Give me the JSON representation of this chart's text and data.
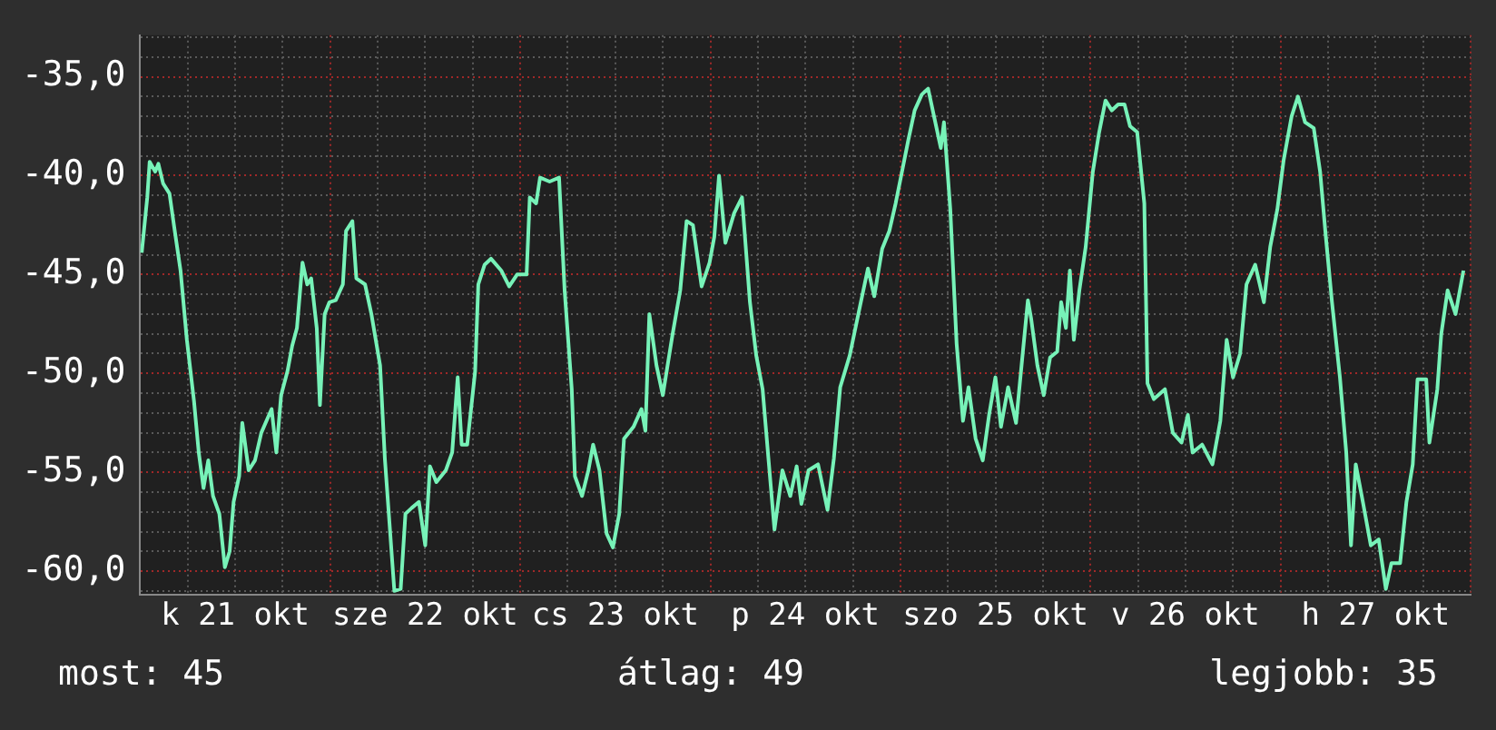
{
  "chart_data": {
    "type": "line",
    "x": [
      "--10-21T00:12",
      "--10-21T00:54",
      "--10-21T01:12",
      "--10-21T01:54",
      "--10-21T02:18",
      "--10-21T02:54",
      "--10-21T03:42",
      "--10-21T04:18",
      "--10-21T05:06",
      "--10-21T05:54",
      "--10-21T06:48",
      "--10-21T07:24",
      "--10-21T08:00",
      "--10-21T08:36",
      "--10-21T09:12",
      "--10-21T10:00",
      "--10-21T10:42",
      "--10-21T11:18",
      "--10-21T11:48",
      "--10-21T12:30",
      "--10-21T12:54",
      "--10-21T13:42",
      "--10-21T14:30",
      "--10-21T15:18",
      "--10-21T16:36",
      "--10-21T17:12",
      "--10-21T17:48",
      "--10-21T18:36",
      "--10-21T19:12",
      "--10-21T19:48",
      "--10-21T20:30",
      "--10-21T21:06",
      "--10-21T21:36",
      "--10-21T22:18",
      "--10-21T22:42",
      "--10-21T23:18",
      "--10-21T23:54",
      "--10-22T00:42",
      "--10-22T01:36",
      "--10-22T02:00",
      "--10-22T02:48",
      "--10-22T03:18",
      "--10-22T04:24",
      "--10-22T05:12",
      "--10-22T06:18",
      "--10-22T06:54",
      "--10-22T07:24",
      "--10-22T08:06",
      "--10-22T08:54",
      "--10-22T09:30",
      "--10-22T10:18",
      "--10-22T11:12",
      "--10-22T12:00",
      "--10-22T12:36",
      "--10-22T13:24",
      "--10-22T14:36",
      "--10-22T15:24",
      "--10-22T16:06",
      "--10-22T16:36",
      "--10-22T17:18",
      "--10-22T18:18",
      "--10-22T18:42",
      "--10-22T19:30",
      "--10-22T20:18",
      "--10-22T21:36",
      "--10-22T22:36",
      "--10-22T23:36",
      "--10-23T00:48",
      "--10-23T01:12",
      "--10-23T02:00",
      "--10-23T02:30",
      "--10-23T03:42",
      "--10-23T04:54",
      "--10-23T05:36",
      "--10-23T06:30",
      "--10-23T06:54",
      "--10-23T07:48",
      "--10-23T08:36",
      "--10-23T09:12",
      "--10-23T10:00",
      "--10-23T10:54",
      "--10-23T11:42",
      "--10-23T12:30",
      "--10-23T13:06",
      "--10-23T14:18",
      "--10-23T15:18",
      "--10-23T15:48",
      "--10-23T16:18",
      "--10-23T17:12",
      "--10-23T18:00",
      "--10-23T19:12",
      "--10-23T20:12",
      "--10-23T21:00",
      "--10-23T21:48",
      "--10-23T22:54",
      "--10-23T23:54",
      "--10-24T00:30",
      "--10-24T01:06",
      "--10-24T01:54",
      "--10-24T03:00",
      "--10-24T04:00",
      "--10-24T05:00",
      "--10-24T05:48",
      "--10-24T06:36",
      "--10-24T07:24",
      "--10-24T08:06",
      "--10-24T09:06",
      "--10-24T10:06",
      "--10-24T10:54",
      "--10-24T11:30",
      "--10-24T12:24",
      "--10-24T13:36",
      "--10-24T14:48",
      "--10-24T15:36",
      "--10-24T16:24",
      "--10-24T17:36",
      "--10-24T18:54",
      "--10-24T19:54",
      "--10-24T20:42",
      "--10-24T21:42",
      "--10-24T22:36",
      "--10-24T23:24",
      "--10-25T00:12",
      "--10-25T01:00",
      "--10-25T01:48",
      "--10-25T02:42",
      "--10-25T03:30",
      "--10-25T04:18",
      "--10-25T05:06",
      "--10-25T05:30",
      "--10-25T06:18",
      "--10-25T07:06",
      "--10-25T07:54",
      "--10-25T08:36",
      "--10-25T09:30",
      "--10-25T10:24",
      "--10-25T11:12",
      "--10-25T12:00",
      "--10-25T12:42",
      "--10-25T13:36",
      "--10-25T14:36",
      "--10-25T15:18",
      "--10-25T16:06",
      "--10-25T16:30",
      "--10-25T17:18",
      "--10-25T18:06",
      "--10-25T18:54",
      "--10-25T19:48",
      "--10-25T20:18",
      "--10-25T20:54",
      "--10-25T21:24",
      "--10-25T21:54",
      "--10-25T22:36",
      "--10-25T23:24",
      "--10-26T00:18",
      "--10-26T01:06",
      "--10-26T01:54",
      "--10-26T02:42",
      "--10-26T03:30",
      "--10-26T04:18",
      "--10-26T05:00",
      "--10-26T05:54",
      "--10-26T06:48",
      "--10-26T07:12",
      "--10-26T08:00",
      "--10-26T09:24",
      "--10-26T10:24",
      "--10-26T11:30",
      "--10-26T12:18",
      "--10-26T12:54",
      "--10-26T14:06",
      "--10-26T15:24",
      "--10-26T16:24",
      "--10-26T17:12",
      "--10-26T18:00",
      "--10-26T18:54",
      "--10-26T19:42",
      "--10-26T20:48",
      "--10-26T21:54",
      "--10-26T22:42",
      "--10-26T23:36",
      "--10-27T00:24",
      "--10-27T01:24",
      "--10-27T02:12",
      "--10-27T03:06",
      "--10-27T04:12",
      "--10-27T05:00",
      "--10-27T05:42",
      "--10-27T06:30",
      "--10-27T07:30",
      "--10-27T08:18",
      "--10-27T08:54",
      "--10-27T09:30",
      "--10-27T10:24",
      "--10-27T11:24",
      "--10-27T12:24",
      "--10-27T13:18",
      "--10-27T14:00",
      "--10-27T15:06",
      "--10-27T15:54",
      "--10-27T16:42",
      "--10-27T17:18",
      "--10-27T18:24",
      "--10-27T18:48",
      "--10-27T19:48",
      "--10-27T20:18",
      "--10-27T21:06",
      "--10-27T22:06",
      "--10-27T23:06"
    ],
    "series": [
      {
        "color": "#77f2b8",
        "values": [
          -43.9,
          -41.1,
          -39.3,
          -39.8,
          -39.4,
          -40.4,
          -40.9,
          -42.6,
          -44.8,
          -48.3,
          -51.4,
          -54.0,
          -55.8,
          -54.4,
          -56.2,
          -57.1,
          -59.8,
          -59.0,
          -56.5,
          -55.2,
          -52.5,
          -54.9,
          -54.4,
          -53.0,
          -51.8,
          -54.0,
          -51.1,
          -49.9,
          -48.6,
          -47.7,
          -44.4,
          -45.5,
          -45.2,
          -47.7,
          -51.6,
          -47.0,
          -46.4,
          -46.3,
          -45.5,
          -42.8,
          -42.3,
          -45.2,
          -45.5,
          -47.0,
          -49.6,
          -54.3,
          -57.1,
          -61.0,
          -60.9,
          -57.1,
          -56.8,
          -56.5,
          -58.7,
          -54.7,
          -55.5,
          -54.9,
          -54.0,
          -50.2,
          -53.6,
          -53.6,
          -49.9,
          -45.5,
          -44.5,
          -44.2,
          -44.8,
          -45.6,
          -45.0,
          -45.0,
          -41.1,
          -41.4,
          -40.1,
          -40.3,
          -40.1,
          -45.8,
          -50.8,
          -55.2,
          -56.2,
          -54.9,
          -53.6,
          -54.9,
          -58.1,
          -58.8,
          -57.1,
          -53.3,
          -52.7,
          -51.8,
          -52.9,
          -47.0,
          -49.6,
          -51.1,
          -48.1,
          -45.8,
          -42.3,
          -42.5,
          -45.6,
          -44.4,
          -43.1,
          -40.0,
          -43.4,
          -41.9,
          -41.1,
          -46.4,
          -49.1,
          -50.8,
          -54.6,
          -57.9,
          -54.9,
          -56.2,
          -54.7,
          -56.6,
          -54.9,
          -54.6,
          -56.9,
          -54.3,
          -50.7,
          -49.1,
          -46.6,
          -44.7,
          -46.1,
          -43.7,
          -42.8,
          -41.4,
          -39.8,
          -38.2,
          -36.7,
          -35.9,
          -35.6,
          -37.1,
          -38.6,
          -37.3,
          -41.7,
          -48.5,
          -52.4,
          -50.7,
          -53.3,
          -54.4,
          -52.1,
          -50.2,
          -52.7,
          -50.7,
          -52.5,
          -49.6,
          -46.3,
          -47.2,
          -49.6,
          -51.1,
          -49.2,
          -48.9,
          -46.4,
          -47.7,
          -44.8,
          -48.3,
          -45.8,
          -43.6,
          -39.8,
          -37.8,
          -36.2,
          -36.7,
          -36.4,
          -36.4,
          -37.5,
          -37.8,
          -41.4,
          -50.5,
          -51.3,
          -50.8,
          -53.0,
          -53.5,
          -52.1,
          -54.0,
          -53.6,
          -54.6,
          -52.4,
          -48.3,
          -50.2,
          -49.0,
          -45.5,
          -44.5,
          -46.4,
          -43.6,
          -41.7,
          -39.2,
          -37.0,
          -36.0,
          -37.3,
          -37.6,
          -39.8,
          -43.0,
          -46.4,
          -50.2,
          -54.0,
          -58.7,
          -54.6,
          -56.5,
          -58.7,
          -58.4,
          -60.9,
          -59.6,
          -59.6,
          -56.5,
          -54.6,
          -50.3,
          -50.3,
          -53.5,
          -50.8,
          -48.0,
          -45.8,
          -47.0,
          -44.8
        ]
      }
    ],
    "xlim": [
      "--10-21T00:00",
      "--10-28T00:00"
    ],
    "xticks": [
      {
        "value": "--10-21T00:00",
        "label": null
      },
      {
        "value": "--10-21T06:00",
        "label": null
      },
      {
        "value": "--10-21T12:00",
        "label": "k 21 okt"
      },
      {
        "value": "--10-21T18:00",
        "label": null
      },
      {
        "value": "--10-22T00:00",
        "label": null
      },
      {
        "value": "--10-22T06:00",
        "label": null
      },
      {
        "value": "--10-22T12:00",
        "label": "sze 22 okt"
      },
      {
        "value": "--10-22T18:00",
        "label": null
      },
      {
        "value": "--10-23T00:00",
        "label": null
      },
      {
        "value": "--10-23T06:00",
        "label": null
      },
      {
        "value": "--10-23T12:00",
        "label": "cs 23 okt"
      },
      {
        "value": "--10-23T18:00",
        "label": null
      },
      {
        "value": "--10-24T00:00",
        "label": null
      },
      {
        "value": "--10-24T06:00",
        "label": null
      },
      {
        "value": "--10-24T12:00",
        "label": "p 24 okt"
      },
      {
        "value": "--10-24T18:00",
        "label": null
      },
      {
        "value": "--10-25T00:00",
        "label": null
      },
      {
        "value": "--10-25T06:00",
        "label": null
      },
      {
        "value": "--10-25T12:00",
        "label": "szo 25 okt"
      },
      {
        "value": "--10-25T18:00",
        "label": null
      },
      {
        "value": "--10-26T00:00",
        "label": null
      },
      {
        "value": "--10-26T06:00",
        "label": null
      },
      {
        "value": "--10-26T12:00",
        "label": "v 26 okt"
      },
      {
        "value": "--10-26T18:00",
        "label": null
      },
      {
        "value": "--10-27T00:00",
        "label": null
      },
      {
        "value": "--10-27T06:00",
        "label": null
      },
      {
        "value": "--10-27T12:00",
        "label": "h 27 okt"
      },
      {
        "value": "--10-27T18:00",
        "label": null
      },
      {
        "value": "--10-28T00:00",
        "label": null
      }
    ],
    "ylim": [
      -61.2,
      -32.9
    ],
    "yticks": [
      {
        "value": -61,
        "label": null
      },
      {
        "value": -60,
        "label": "-60,0"
      },
      {
        "value": -59,
        "label": null
      },
      {
        "value": -58,
        "label": null
      },
      {
        "value": -57,
        "label": null
      },
      {
        "value": -56,
        "label": null
      },
      {
        "value": -55,
        "label": "-55,0"
      },
      {
        "value": -54,
        "label": null
      },
      {
        "value": -53,
        "label": null
      },
      {
        "value": -52,
        "label": null
      },
      {
        "value": -51,
        "label": null
      },
      {
        "value": -50,
        "label": "-50,0"
      },
      {
        "value": -49,
        "label": null
      },
      {
        "value": -48,
        "label": null
      },
      {
        "value": -47,
        "label": null
      },
      {
        "value": -46,
        "label": null
      },
      {
        "value": -45,
        "label": "-45,0"
      },
      {
        "value": -44,
        "label": null
      },
      {
        "value": -43,
        "label": null
      },
      {
        "value": -42,
        "label": null
      },
      {
        "value": -41,
        "label": null
      },
      {
        "value": -40,
        "label": "-40,0"
      },
      {
        "value": -39,
        "label": null
      },
      {
        "value": -38,
        "label": null
      },
      {
        "value": -37,
        "label": null
      },
      {
        "value": -36,
        "label": null
      },
      {
        "value": -35,
        "label": "-35,0"
      },
      {
        "value": -34,
        "label": null
      },
      {
        "value": -33,
        "label": null
      }
    ],
    "grid": true,
    "marker": "none",
    "annotations": [
      "most: 45",
      "átlag: 49",
      "legjobb: 35"
    ]
  }
}
